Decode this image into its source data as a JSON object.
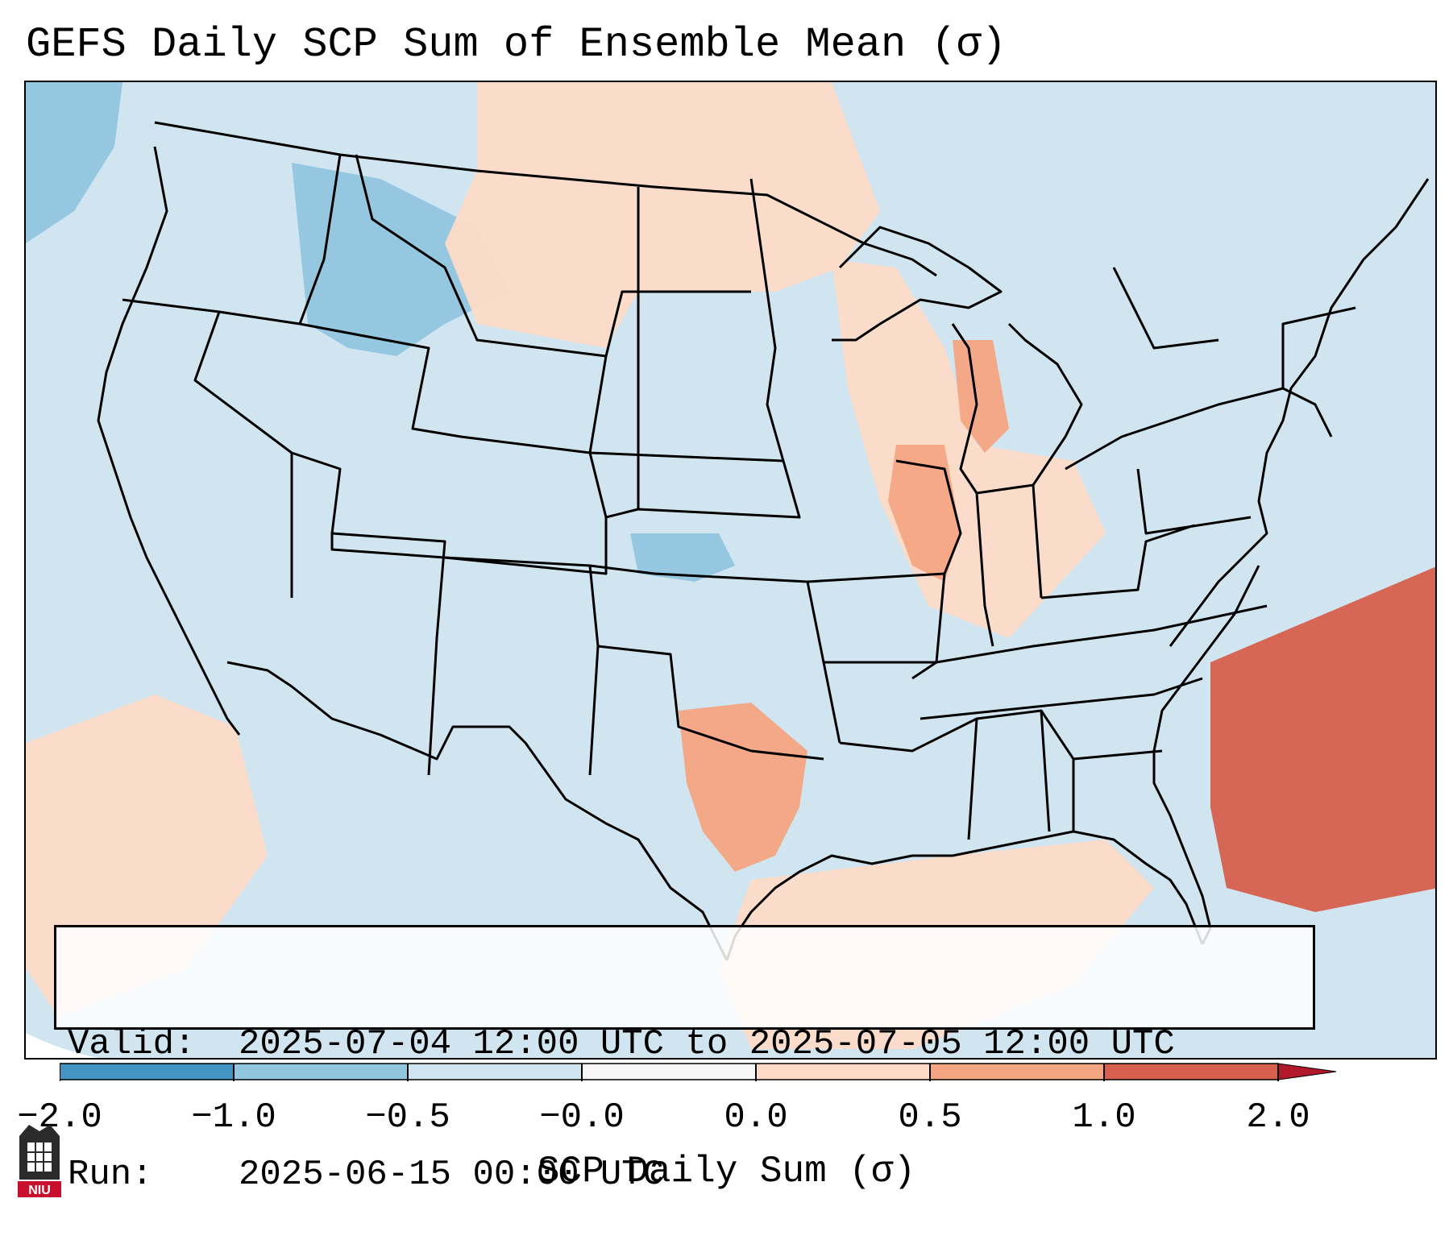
{
  "title": "GEFS Daily SCP Sum of Ensemble Mean (σ)",
  "info": {
    "valid_label": "Valid:",
    "valid_value": "2025-07-04 12:00 UTC to 2025-07-05 12:00 UTC",
    "run_label": "Run:",
    "run_value": "2025-06-15 00:00 UTC"
  },
  "colorbar": {
    "label": "SCP Daily Sum (σ)",
    "ticks": [
      "−2.0",
      "−1.0",
      "−0.5",
      "−0.0",
      "0.0",
      "0.5",
      "1.0",
      "2.0"
    ],
    "colors": [
      "#4393c3",
      "#92c5de",
      "#d1e5f0",
      "#f7f7f7",
      "#fddbc7",
      "#f4a582",
      "#d6604d",
      "#b2182b"
    ],
    "under_color": "#2166ac",
    "over_color": "#b2182b"
  },
  "map": {
    "region": "Continental United States",
    "background_color": "#d1e5f0",
    "anomaly_areas": [
      {
        "name": "northern-rockies-negative",
        "category": "-1.0 to -0.5"
      },
      {
        "name": "north-pacific-negative",
        "category": "-1.0 to -0.5"
      },
      {
        "name": "central-plains-negative",
        "category": "-1.0 to -0.5"
      },
      {
        "name": "northern-plains-positive",
        "category": "0.0 to 0.5"
      },
      {
        "name": "upper-midwest-positive",
        "category": "0.0 to 0.5"
      },
      {
        "name": "illinois-positive",
        "category": "0.5 to 1.0"
      },
      {
        "name": "lake-michigan-positive",
        "category": "0.5 to 1.0"
      },
      {
        "name": "texas-positive",
        "category": "0.5 to 1.0"
      },
      {
        "name": "gulf-of-mexico-positive",
        "category": "0.0 to 0.5"
      },
      {
        "name": "western-atlantic-positive",
        "category": "1.0 to 2.0"
      },
      {
        "name": "eastern-pacific-positive",
        "category": "0.0 to 0.5"
      }
    ]
  },
  "logo": {
    "text": "NIU"
  }
}
